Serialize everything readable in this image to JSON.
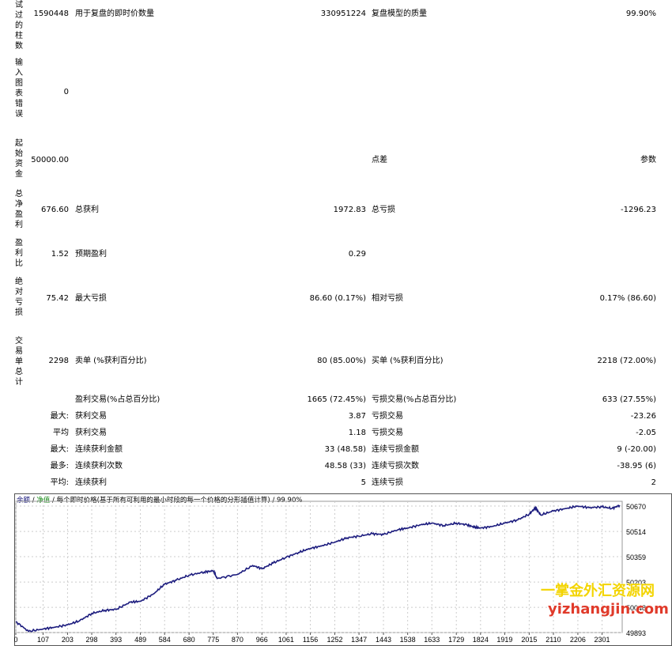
{
  "labels_vertical": {
    "bars_tested": "试过的柱数",
    "chart_errors": "输入图表错误",
    "initial_deposit": "起始资金",
    "net_profit": "总净盈利",
    "profit_factor": "盈利比",
    "abs_drawdown": "绝对亏损",
    "total_trades": "交易单总计"
  },
  "row1": {
    "bars": "1590448",
    "ticks_label": "用于复盘的即时价数量",
    "ticks_value": "330951224",
    "quality_label": "复盘模型的质量",
    "quality_value": "99.90%"
  },
  "row2": {
    "errors": "0"
  },
  "row3": {
    "deposit": "50000.00",
    "spread_label": "点差",
    "spread_value": "参数"
  },
  "row4": {
    "net_profit": "676.60",
    "gross_profit_label": "总获利",
    "gross_profit": "1972.83",
    "gross_loss_label": "总亏损",
    "gross_loss": "-1296.23"
  },
  "row5": {
    "profit_factor": "1.52",
    "expected_label": "预期盈利",
    "expected": "0.29"
  },
  "row6": {
    "abs_drawdown": "75.42",
    "max_dd_label": "最大亏损",
    "max_dd": "86.60 (0.17%)",
    "rel_dd_label": "相对亏损",
    "rel_dd": "0.17% (86.60)"
  },
  "row7": {
    "total_trades": "2298",
    "short_label": "卖单 (%获利百分比)",
    "short": "80 (85.00%)",
    "long_label": "买单 (%获利百分比)",
    "long": "2218 (72.00%)"
  },
  "stats": [
    {
      "prefix": "",
      "l1": "盈利交易(%占总百分比)",
      "v1": "1665 (72.45%)",
      "l2": "亏损交易(%占总百分比)",
      "v2": "633 (27.55%)"
    },
    {
      "prefix": "最大:",
      "l1": "获利交易",
      "v1": "3.87",
      "l2": "亏损交易",
      "v2": "-23.26"
    },
    {
      "prefix": "平均",
      "l1": "获利交易",
      "v1": "1.18",
      "l2": "亏损交易",
      "v2": "-2.05"
    },
    {
      "prefix": "最大:",
      "l1": "连续获利金额",
      "v1": "33 (48.58)",
      "l2": "连续亏损金额",
      "v2": "9 (-20.00)"
    },
    {
      "prefix": "最多:",
      "l1": "连续获利次数",
      "v1": "48.58 (33)",
      "l2": "连续亏损次数",
      "v2": "-38.95 (6)"
    },
    {
      "prefix": "平均:",
      "l1": "连续获利",
      "v1": "5",
      "l2": "连续亏损",
      "v2": "2"
    }
  ],
  "chart_header": {
    "balance": "余额",
    "sep1": "/",
    "equity": "净值",
    "sep2": "/",
    "desc": "每个即时价格(基于所有可利用的最小时段的每一个价格的分形插值计算)",
    "sep3": "/",
    "quality": "99.90%"
  },
  "chart_data": {
    "type": "line",
    "x_ticks": [
      "0",
      "107",
      "203",
      "298",
      "393",
      "489",
      "584",
      "680",
      "775",
      "870",
      "966",
      "1061",
      "1156",
      "1252",
      "1347",
      "1443",
      "1538",
      "1633",
      "1729",
      "1824",
      "1919",
      "2015",
      "2110",
      "2206",
      "2301"
    ],
    "y_ticks": [
      "50670",
      "50514",
      "50359",
      "50203",
      "50048",
      "49893"
    ],
    "ylim": [
      49893,
      50670
    ],
    "xlim": [
      0,
      2380
    ],
    "series": [
      {
        "x": [
          0,
          50,
          107,
          150,
          203,
          250,
          298,
          350,
          393,
          450,
          489,
          540,
          584,
          630,
          680,
          740,
          775,
          790,
          870,
          930,
          966,
          1010,
          1061,
          1110,
          1156,
          1200,
          1252,
          1300,
          1347,
          1400,
          1443,
          1500,
          1538,
          1590,
          1633,
          1680,
          1729,
          1770,
          1800,
          1824,
          1870,
          1919,
          1970,
          2015,
          2040,
          2060,
          2110,
          2160,
          2206,
          2250,
          2301,
          2340,
          2370
        ],
        "y": [
          49960,
          49900,
          49915,
          49925,
          49940,
          49965,
          50010,
          50030,
          50035,
          50080,
          50085,
          50130,
          50190,
          50215,
          50245,
          50265,
          50272,
          50225,
          50250,
          50305,
          50285,
          50320,
          50355,
          50385,
          50410,
          50425,
          50448,
          50475,
          50485,
          50500,
          50495,
          50525,
          50535,
          50555,
          50565,
          50550,
          50565,
          50555,
          50540,
          50535,
          50545,
          50565,
          50585,
          50620,
          50660,
          50615,
          50640,
          50655,
          50670,
          50660,
          50665,
          50655,
          50675
        ]
      }
    ],
    "grid": true,
    "line_color": "#1c1c7e"
  },
  "watermark": {
    "line1": "一掌金外汇资源网",
    "line2": "yizhangjin.com"
  }
}
